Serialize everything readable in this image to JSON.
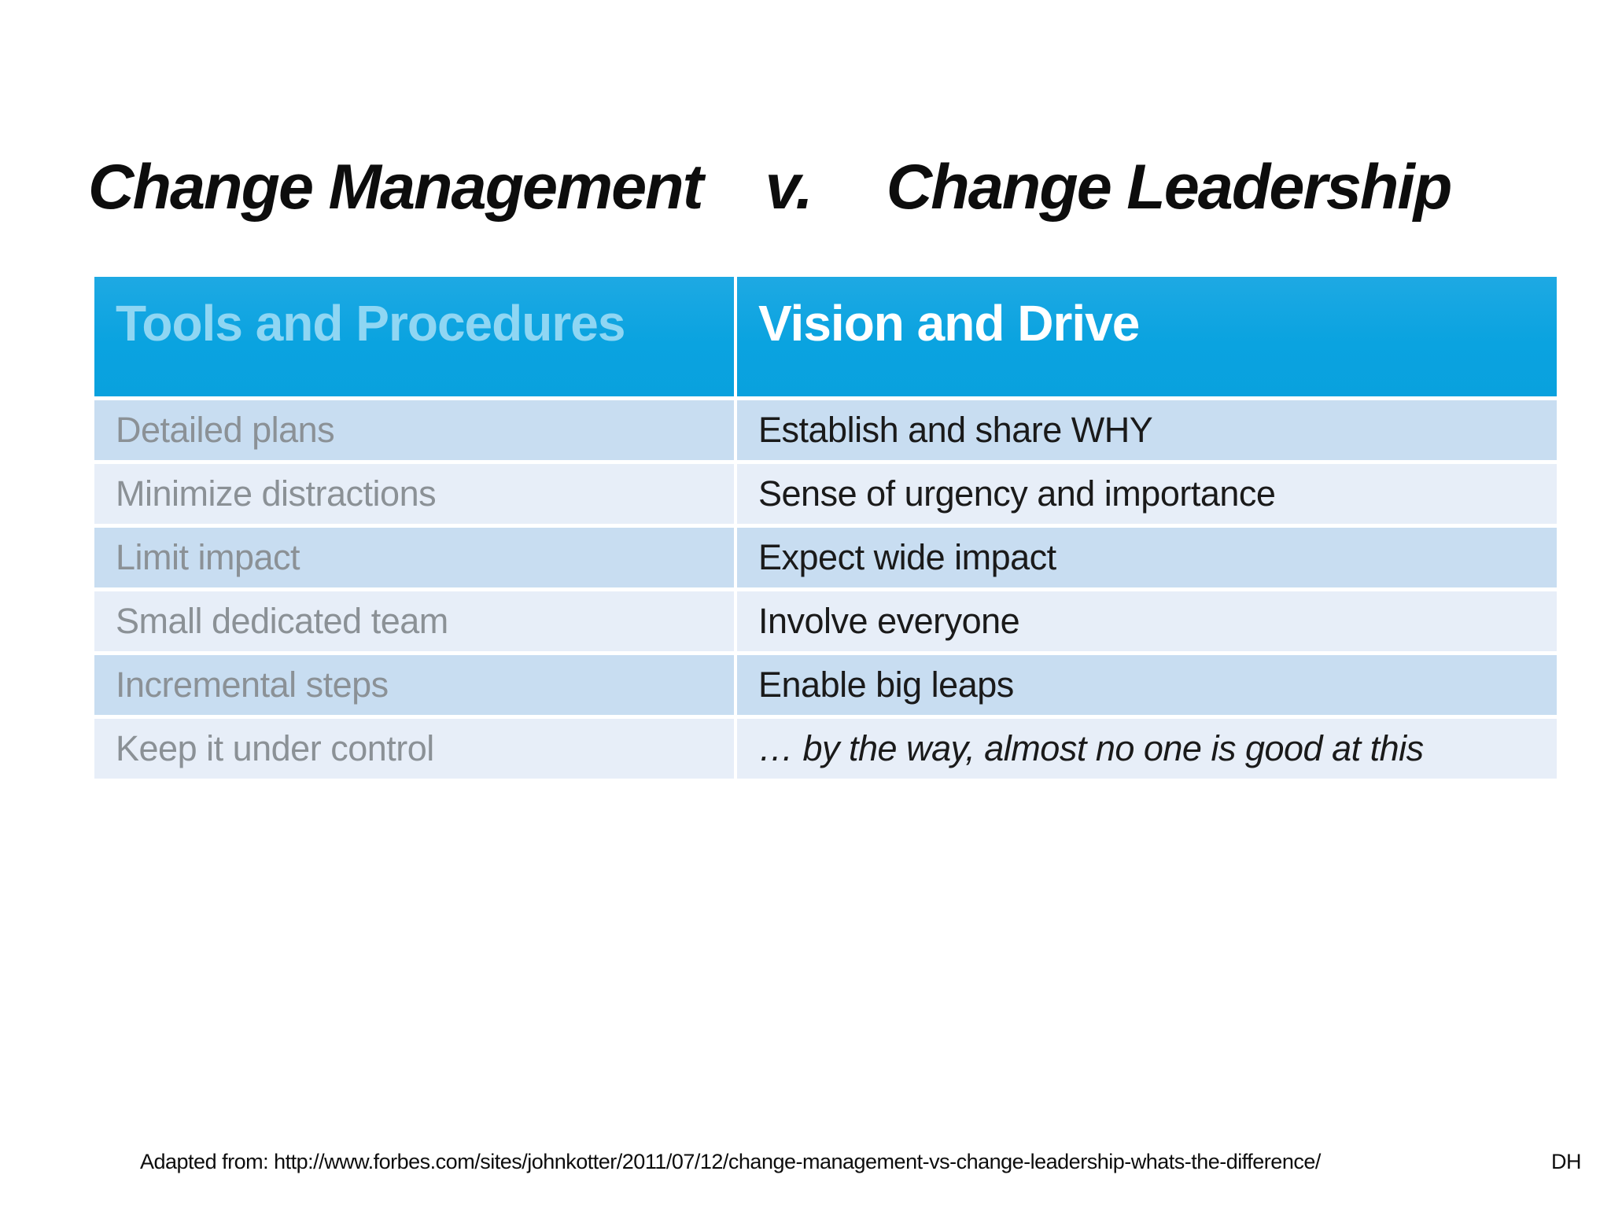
{
  "slide": {
    "title": {
      "left": "Change Management",
      "separator": "v.",
      "right": "Change Leadership"
    },
    "table": {
      "headers": [
        {
          "label": "Tools and Procedures"
        },
        {
          "label": "Vision and Drive"
        }
      ],
      "rows": [
        {
          "left": "Detailed plans",
          "right": "Establish and share WHY"
        },
        {
          "left": "Minimize distractions",
          "right": "Sense of urgency and importance"
        },
        {
          "left": "Limit impact",
          "right": "Expect wide impact"
        },
        {
          "left": "Small dedicated team",
          "right": "Involve everyone"
        },
        {
          "left": "Incremental steps",
          "right": "Enable big leaps"
        },
        {
          "left": "Keep it under control",
          "right": "… by the way, almost no one is good at this"
        }
      ]
    },
    "footer": {
      "source": "Adapted from: http://www.forbes.com/sites/johnkotter/2011/07/12/change-management-vs-change-leadership-whats-the-difference/",
      "initials": "DH"
    },
    "colors": {
      "header_background": "#0aa3e0",
      "header_text_left": "#8fd6f3",
      "header_text_right": "#ffffff",
      "row_odd_background": "#c8ddf1",
      "row_even_background": "#e7eef8",
      "row_text_left": "#8b9196",
      "row_text_right": "#1a1a1a",
      "slide_background": "#ffffff",
      "title_text": "#0d0d0d"
    }
  }
}
